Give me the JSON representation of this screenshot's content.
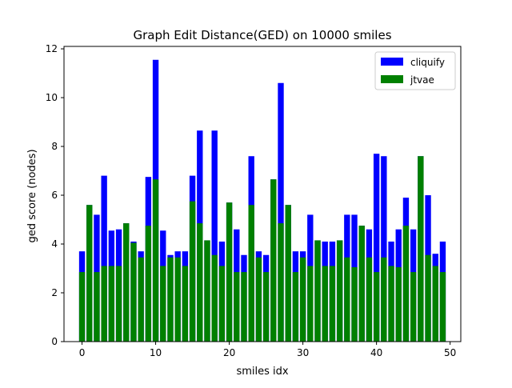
{
  "chart_data": {
    "type": "bar",
    "title": "Graph Edit Distance(GED) on 10000 smiles",
    "xlabel": "smiles idx",
    "ylabel": "ged score (nodes)",
    "xlim": [
      -2.45,
      51.45
    ],
    "ylim": [
      0,
      12.1
    ],
    "xticks": [
      0,
      10,
      20,
      30,
      40,
      50
    ],
    "yticks": [
      0,
      2,
      4,
      6,
      8,
      10,
      12
    ],
    "grid": false,
    "legend_position": "top-right",
    "overlay": true,
    "x": [
      0,
      1,
      2,
      3,
      4,
      5,
      6,
      7,
      8,
      9,
      10,
      11,
      12,
      13,
      14,
      15,
      16,
      17,
      18,
      19,
      20,
      21,
      22,
      23,
      24,
      25,
      26,
      27,
      28,
      29,
      30,
      31,
      32,
      33,
      34,
      35,
      36,
      37,
      38,
      39,
      40,
      41,
      42,
      43,
      44,
      45,
      46,
      47,
      48,
      49
    ],
    "series": [
      {
        "name": "cliquify",
        "color": "#0000ff",
        "values": [
          3.7,
          5.6,
          5.2,
          6.8,
          4.55,
          4.6,
          4.85,
          4.1,
          3.7,
          6.75,
          11.55,
          4.55,
          3.55,
          3.7,
          3.7,
          6.8,
          8.65,
          4.15,
          8.65,
          4.1,
          5.7,
          4.6,
          3.55,
          7.6,
          3.7,
          3.55,
          6.65,
          10.6,
          5.6,
          3.7,
          3.7,
          5.2,
          4.15,
          4.1,
          4.1,
          4.15,
          5.2,
          5.2,
          4.75,
          4.6,
          7.7,
          7.6,
          4.1,
          4.6,
          5.9,
          4.6,
          7.6,
          6.0,
          3.6,
          4.1
        ]
      },
      {
        "name": "jtvae",
        "color": "#008000",
        "values": [
          2.85,
          5.6,
          2.85,
          3.1,
          3.1,
          3.1,
          4.85,
          4.05,
          3.45,
          4.75,
          6.65,
          3.1,
          3.45,
          3.45,
          3.1,
          5.75,
          4.85,
          4.15,
          3.55,
          3.1,
          5.7,
          2.85,
          2.85,
          5.6,
          3.45,
          2.85,
          6.65,
          4.85,
          5.6,
          2.85,
          3.45,
          3.1,
          4.15,
          3.1,
          3.1,
          4.15,
          3.45,
          3.05,
          4.75,
          3.45,
          2.85,
          3.45,
          3.1,
          3.05,
          4.75,
          2.85,
          7.6,
          3.55,
          3.1,
          2.85
        ]
      }
    ]
  }
}
